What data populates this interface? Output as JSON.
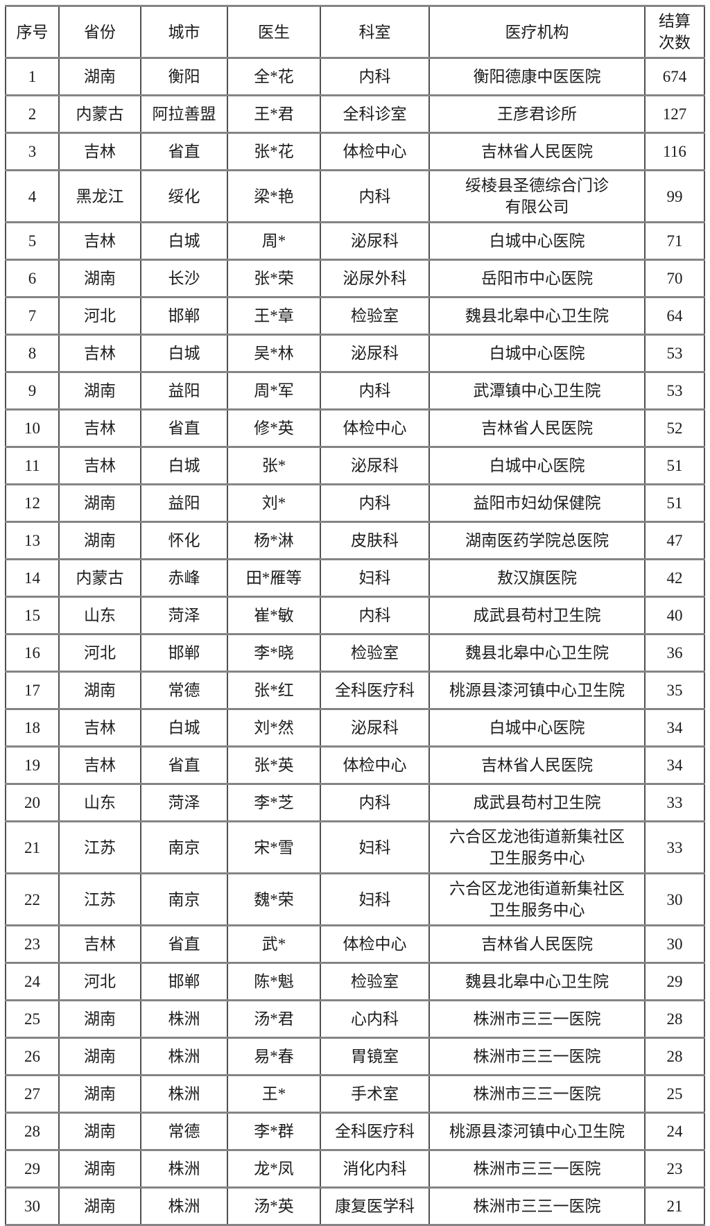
{
  "table": {
    "columns": [
      {
        "key": "index",
        "label": "序号"
      },
      {
        "key": "province",
        "label": "省份"
      },
      {
        "key": "city",
        "label": "城市"
      },
      {
        "key": "doctor",
        "label": "医生"
      },
      {
        "key": "department",
        "label": "科室"
      },
      {
        "key": "institution",
        "label": "医疗机构"
      },
      {
        "key": "settlement-count",
        "label": "结算\n次数"
      }
    ],
    "rows": [
      {
        "cells": [
          "1",
          "湖南",
          "衡阳",
          "全*花",
          "内科",
          "衡阳德康中医医院",
          "674"
        ]
      },
      {
        "cells": [
          "2",
          "内蒙古",
          "阿拉善盟",
          "王*君",
          "全科诊室",
          "王彦君诊所",
          "127"
        ]
      },
      {
        "cells": [
          "3",
          "吉林",
          "省直",
          "张*花",
          "体检中心",
          "吉林省人民医院",
          "116"
        ]
      },
      {
        "cells": [
          "4",
          "黑龙江",
          "绥化",
          "梁*艳",
          "内科",
          "绥棱县圣德综合门诊\n有限公司",
          "99"
        ]
      },
      {
        "cells": [
          "5",
          "吉林",
          "白城",
          "周*",
          "泌尿科",
          "白城中心医院",
          "71"
        ]
      },
      {
        "cells": [
          "6",
          "湖南",
          "长沙",
          "张*荣",
          "泌尿外科",
          "岳阳市中心医院",
          "70"
        ]
      },
      {
        "cells": [
          "7",
          "河北",
          "邯郸",
          "王*章",
          "检验室",
          "魏县北皋中心卫生院",
          "64"
        ]
      },
      {
        "cells": [
          "8",
          "吉林",
          "白城",
          "吴*林",
          "泌尿科",
          "白城中心医院",
          "53"
        ]
      },
      {
        "cells": [
          "9",
          "湖南",
          "益阳",
          "周*军",
          "内科",
          "武潭镇中心卫生院",
          "53"
        ]
      },
      {
        "cells": [
          "10",
          "吉林",
          "省直",
          "修*英",
          "体检中心",
          "吉林省人民医院",
          "52"
        ]
      },
      {
        "cells": [
          "11",
          "吉林",
          "白城",
          "张*",
          "泌尿科",
          "白城中心医院",
          "51"
        ]
      },
      {
        "cells": [
          "12",
          "湖南",
          "益阳",
          "刘*",
          "内科",
          "益阳市妇幼保健院",
          "51"
        ]
      },
      {
        "cells": [
          "13",
          "湖南",
          "怀化",
          "杨*淋",
          "皮肤科",
          "湖南医药学院总医院",
          "47"
        ]
      },
      {
        "cells": [
          "14",
          "内蒙古",
          "赤峰",
          "田*雁等",
          "妇科",
          "敖汉旗医院",
          "42"
        ]
      },
      {
        "cells": [
          "15",
          "山东",
          "菏泽",
          "崔*敏",
          "内科",
          "成武县苟村卫生院",
          "40"
        ]
      },
      {
        "cells": [
          "16",
          "河北",
          "邯郸",
          "李*晓",
          "检验室",
          "魏县北皋中心卫生院",
          "36"
        ]
      },
      {
        "cells": [
          "17",
          "湖南",
          "常德",
          "张*红",
          "全科医疗科",
          "桃源县漆河镇中心卫生院",
          "35"
        ]
      },
      {
        "cells": [
          "18",
          "吉林",
          "白城",
          "刘*然",
          "泌尿科",
          "白城中心医院",
          "34"
        ]
      },
      {
        "cells": [
          "19",
          "吉林",
          "省直",
          "张*英",
          "体检中心",
          "吉林省人民医院",
          "34"
        ]
      },
      {
        "cells": [
          "20",
          "山东",
          "菏泽",
          "李*芝",
          "内科",
          "成武县苟村卫生院",
          "33"
        ]
      },
      {
        "cells": [
          "21",
          "江苏",
          "南京",
          "宋*雪",
          "妇科",
          "六合区龙池街道新集社区\n卫生服务中心",
          "33"
        ]
      },
      {
        "cells": [
          "22",
          "江苏",
          "南京",
          "魏*荣",
          "妇科",
          "六合区龙池街道新集社区\n卫生服务中心",
          "30"
        ]
      },
      {
        "cells": [
          "23",
          "吉林",
          "省直",
          "武*",
          "体检中心",
          "吉林省人民医院",
          "30"
        ]
      },
      {
        "cells": [
          "24",
          "河北",
          "邯郸",
          "陈*魁",
          "检验室",
          "魏县北皋中心卫生院",
          "29"
        ]
      },
      {
        "cells": [
          "25",
          "湖南",
          "株洲",
          "汤*君",
          "心内科",
          "株洲市三三一医院",
          "28"
        ]
      },
      {
        "cells": [
          "26",
          "湖南",
          "株洲",
          "易*春",
          "胃镜室",
          "株洲市三三一医院",
          "28"
        ]
      },
      {
        "cells": [
          "27",
          "湖南",
          "株洲",
          "王*",
          "手术室",
          "株洲市三三一医院",
          "25"
        ]
      },
      {
        "cells": [
          "28",
          "湖南",
          "常德",
          "李*群",
          "全科医疗科",
          "桃源县漆河镇中心卫生院",
          "24"
        ]
      },
      {
        "cells": [
          "29",
          "湖南",
          "株洲",
          "龙*凤",
          "消化内科",
          "株洲市三三一医院",
          "23"
        ]
      },
      {
        "cells": [
          "30",
          "湖南",
          "株洲",
          "汤*英",
          "康复医学科",
          "株洲市三三一医院",
          "21"
        ]
      }
    ]
  }
}
